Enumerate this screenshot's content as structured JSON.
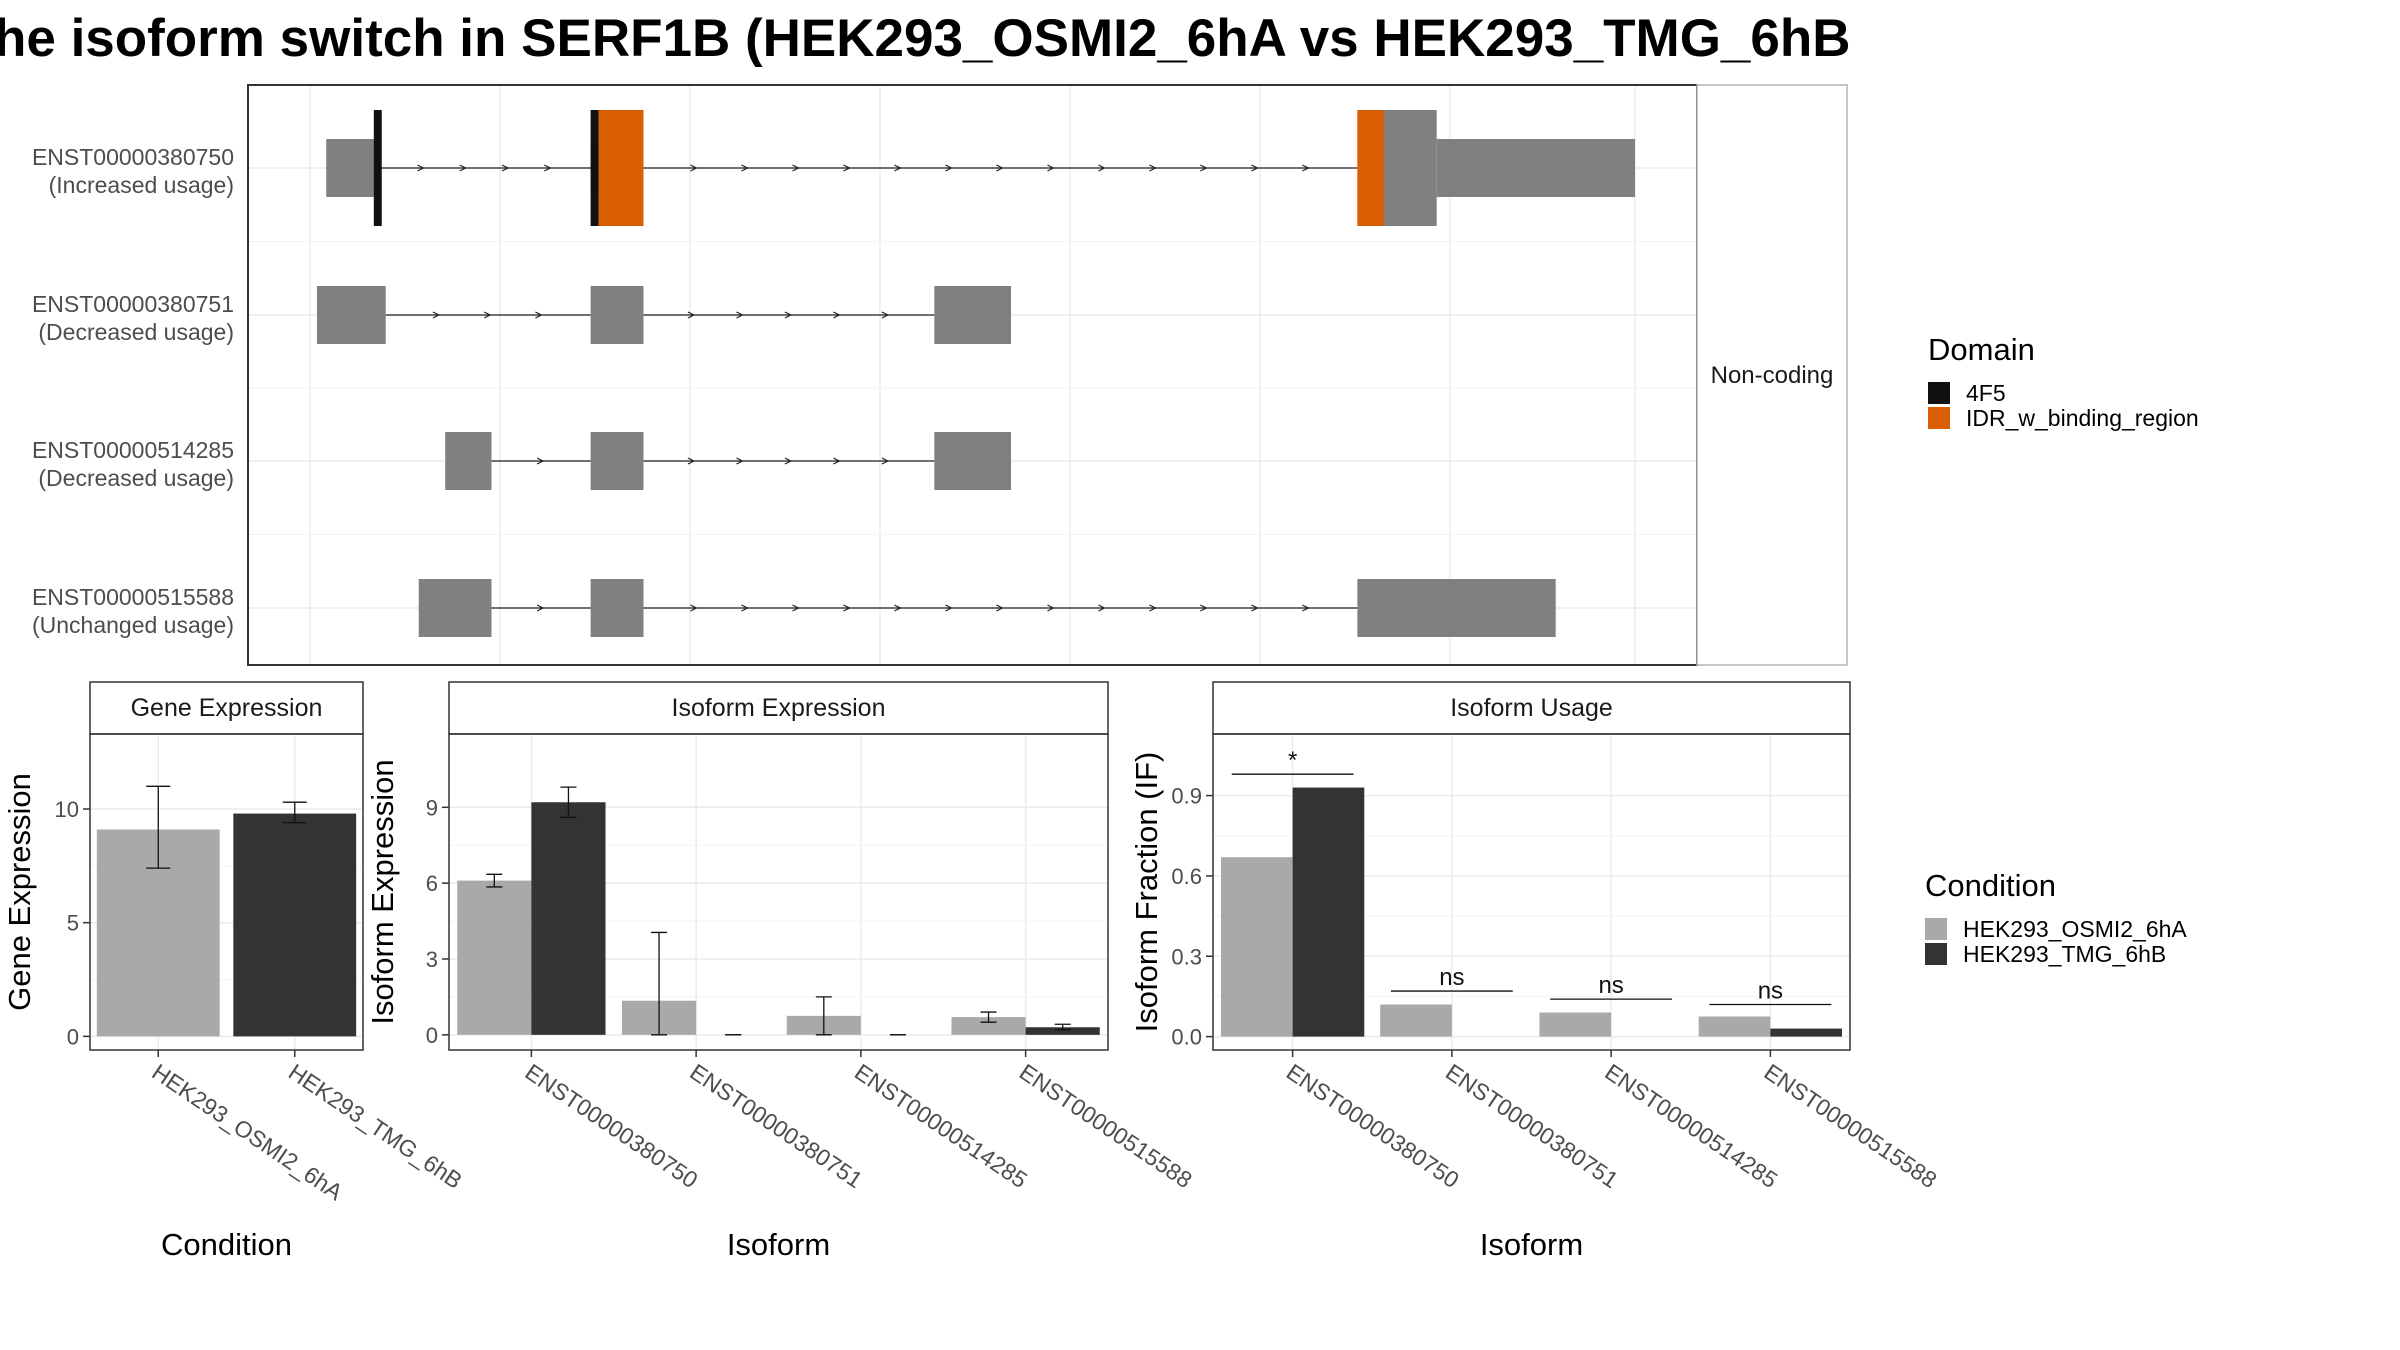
{
  "title": "he isoform switch in SERF1B (HEK293_OSMI2_6hA vs HEK293_TMG_6hB",
  "colors": {
    "exon": "#808080",
    "domain_4F5": "#111111",
    "domain_IDR": "#D95F02",
    "cond_a": "#A9A9A9",
    "cond_b": "#333333",
    "grid": "#EBEBEB",
    "strip": "#FFFFFF"
  },
  "transcript_panel": {
    "strip_label": "Non-coding",
    "xlim": [
      0,
      100
    ],
    "transcripts": [
      {
        "id": "ENST00000380750",
        "usage": "(Increased usage)",
        "exons": [
          [
            1,
            5,
            "small"
          ],
          [
            21,
            25,
            "small"
          ],
          [
            79,
            85,
            "large"
          ],
          [
            85,
            100,
            "mid"
          ]
        ],
        "domains": [
          [
            4.6,
            5.2,
            "4F5"
          ],
          [
            21,
            21.6,
            "4F5"
          ],
          [
            21.6,
            25,
            "IDR_w_binding_region"
          ],
          [
            79,
            81,
            "IDR_w_binding_region"
          ]
        ],
        "introns": [
          [
            5,
            21
          ],
          [
            25,
            79
          ]
        ]
      },
      {
        "id": "ENST00000380751",
        "usage": "(Decreased usage)",
        "exons": [
          [
            0.3,
            5.5,
            "small"
          ],
          [
            21,
            25,
            "small"
          ],
          [
            47,
            52.8,
            "small"
          ]
        ],
        "domains": [],
        "introns": [
          [
            5.5,
            21
          ],
          [
            25,
            47
          ]
        ]
      },
      {
        "id": "ENST00000514285",
        "usage": "(Decreased usage)",
        "exons": [
          [
            10,
            13.5,
            "small"
          ],
          [
            21,
            25,
            "small"
          ],
          [
            47,
            52.8,
            "small"
          ]
        ],
        "domains": [],
        "introns": [
          [
            13.5,
            21
          ],
          [
            25,
            47
          ]
        ]
      },
      {
        "id": "ENST00000515588",
        "usage": "(Unchanged usage)",
        "exons": [
          [
            8,
            13.5,
            "small"
          ],
          [
            21,
            25,
            "small"
          ],
          [
            79,
            94,
            "small"
          ]
        ],
        "domains": [],
        "introns": [
          [
            13.5,
            21
          ],
          [
            25,
            79
          ]
        ]
      }
    ]
  },
  "domain_legend": {
    "title": "Domain",
    "items": [
      {
        "label": "4F5",
        "color": "#111111"
      },
      {
        "label": "IDR_w_binding_region",
        "color": "#D95F02"
      }
    ]
  },
  "condition_legend": {
    "title": "Condition",
    "items": [
      {
        "label": "HEK293_OSMI2_6hA",
        "color": "#A9A9A9"
      },
      {
        "label": "HEK293_TMG_6hB",
        "color": "#333333"
      }
    ]
  },
  "chart_data": [
    {
      "type": "bar",
      "title": "Gene Expression",
      "xlabel": "Condition",
      "ylabel": "Gene Expression",
      "categories": [
        "HEK293_OSMI2_6hA",
        "HEK293_TMG_6hB"
      ],
      "values": [
        9.1,
        9.8
      ],
      "errors": [
        [
          7.4,
          11.0
        ],
        [
          9.4,
          10.3
        ]
      ],
      "ylim": [
        -0.6,
        13.3
      ],
      "yticks": [
        0,
        5,
        10
      ]
    },
    {
      "type": "bar",
      "title": "Isoform Expression",
      "xlabel": "Isoform",
      "ylabel": "Isoform Expression",
      "categories": [
        "ENST00000380750",
        "ENST00000380751",
        "ENST00000514285",
        "ENST00000515588"
      ],
      "series": [
        {
          "name": "HEK293_OSMI2_6hA",
          "values": [
            6.1,
            1.35,
            0.75,
            0.7
          ],
          "errors": [
            [
              5.85,
              6.35
            ],
            [
              0.0,
              4.05
            ],
            [
              0.0,
              1.5
            ],
            [
              0.5,
              0.9
            ]
          ]
        },
        {
          "name": "HEK293_TMG_6hB",
          "values": [
            9.2,
            0.0,
            0.0,
            0.3
          ],
          "errors": [
            [
              8.6,
              9.8
            ],
            [
              0.0,
              0.0
            ],
            [
              0.0,
              0.0
            ],
            [
              0.2,
              0.42
            ]
          ]
        }
      ],
      "ylim": [
        -0.6,
        11.9
      ],
      "yticks": [
        0,
        3,
        6,
        9
      ]
    },
    {
      "type": "bar",
      "title": "Isoform Usage",
      "xlabel": "Isoform",
      "ylabel": "Isoform Fraction (IF)",
      "categories": [
        "ENST00000380750",
        "ENST00000380751",
        "ENST00000514285",
        "ENST00000515588"
      ],
      "series": [
        {
          "name": "HEK293_OSMI2_6hA",
          "values": [
            0.67,
            0.12,
            0.09,
            0.075
          ]
        },
        {
          "name": "HEK293_TMG_6hB",
          "values": [
            0.93,
            0.0,
            0.0,
            0.03
          ]
        }
      ],
      "significance": [
        {
          "label": "*",
          "y": 0.98
        },
        {
          "label": "ns",
          "y": 0.17
        },
        {
          "label": "ns",
          "y": 0.14
        },
        {
          "label": "ns",
          "y": 0.12
        }
      ],
      "ylim": [
        -0.05,
        1.13
      ],
      "yticks": [
        0.0,
        0.3,
        0.6,
        0.9
      ],
      "ytick_labels": [
        "0.0",
        "0.3",
        "0.6",
        "0.9"
      ]
    }
  ]
}
